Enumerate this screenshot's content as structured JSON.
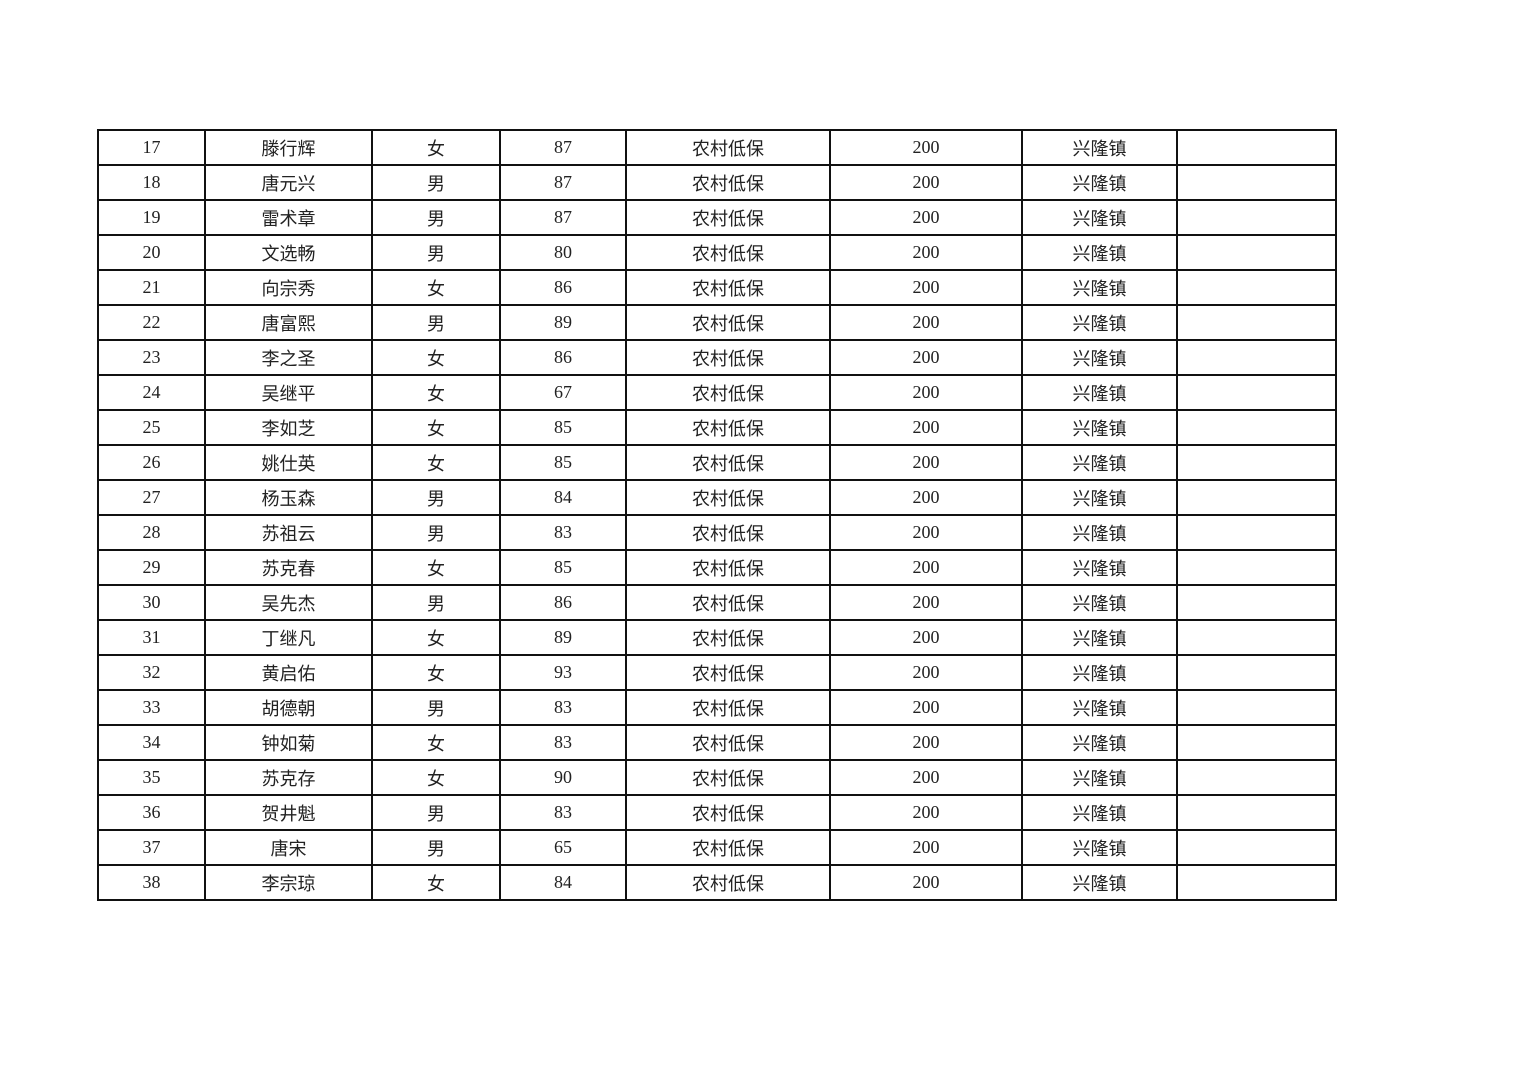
{
  "table": {
    "rows": [
      [
        "17",
        "滕行辉",
        "女",
        "87",
        "农村低保",
        "200",
        "兴隆镇",
        ""
      ],
      [
        "18",
        "唐元兴",
        "男",
        "87",
        "农村低保",
        "200",
        "兴隆镇",
        ""
      ],
      [
        "19",
        "雷术章",
        "男",
        "87",
        "农村低保",
        "200",
        "兴隆镇",
        ""
      ],
      [
        "20",
        "文选畅",
        "男",
        "80",
        "农村低保",
        "200",
        "兴隆镇",
        ""
      ],
      [
        "21",
        "向宗秀",
        "女",
        "86",
        "农村低保",
        "200",
        "兴隆镇",
        ""
      ],
      [
        "22",
        "唐富熙",
        "男",
        "89",
        "农村低保",
        "200",
        "兴隆镇",
        ""
      ],
      [
        "23",
        "李之圣",
        "女",
        "86",
        "农村低保",
        "200",
        "兴隆镇",
        ""
      ],
      [
        "24",
        "吴继平",
        "女",
        "67",
        "农村低保",
        "200",
        "兴隆镇",
        ""
      ],
      [
        "25",
        "李如芝",
        "女",
        "85",
        "农村低保",
        "200",
        "兴隆镇",
        ""
      ],
      [
        "26",
        "姚仕英",
        "女",
        "85",
        "农村低保",
        "200",
        "兴隆镇",
        ""
      ],
      [
        "27",
        "杨玉森",
        "男",
        "84",
        "农村低保",
        "200",
        "兴隆镇",
        ""
      ],
      [
        "28",
        "苏祖云",
        "男",
        "83",
        "农村低保",
        "200",
        "兴隆镇",
        ""
      ],
      [
        "29",
        "苏克春",
        "女",
        "85",
        "农村低保",
        "200",
        "兴隆镇",
        ""
      ],
      [
        "30",
        "吴先杰",
        "男",
        "86",
        "农村低保",
        "200",
        "兴隆镇",
        ""
      ],
      [
        "31",
        "丁继凡",
        "女",
        "89",
        "农村低保",
        "200",
        "兴隆镇",
        ""
      ],
      [
        "32",
        "黄启佑",
        "女",
        "93",
        "农村低保",
        "200",
        "兴隆镇",
        ""
      ],
      [
        "33",
        "胡德朝",
        "男",
        "83",
        "农村低保",
        "200",
        "兴隆镇",
        ""
      ],
      [
        "34",
        "钟如菊",
        "女",
        "83",
        "农村低保",
        "200",
        "兴隆镇",
        ""
      ],
      [
        "35",
        "苏克存",
        "女",
        "90",
        "农村低保",
        "200",
        "兴隆镇",
        ""
      ],
      [
        "36",
        "贺井魁",
        "男",
        "83",
        "农村低保",
        "200",
        "兴隆镇",
        ""
      ],
      [
        "37",
        "唐宋",
        "男",
        "65",
        "农村低保",
        "200",
        "兴隆镇",
        ""
      ],
      [
        "38",
        "李宗琼",
        "女",
        "84",
        "农村低保",
        "200",
        "兴隆镇",
        ""
      ]
    ]
  }
}
